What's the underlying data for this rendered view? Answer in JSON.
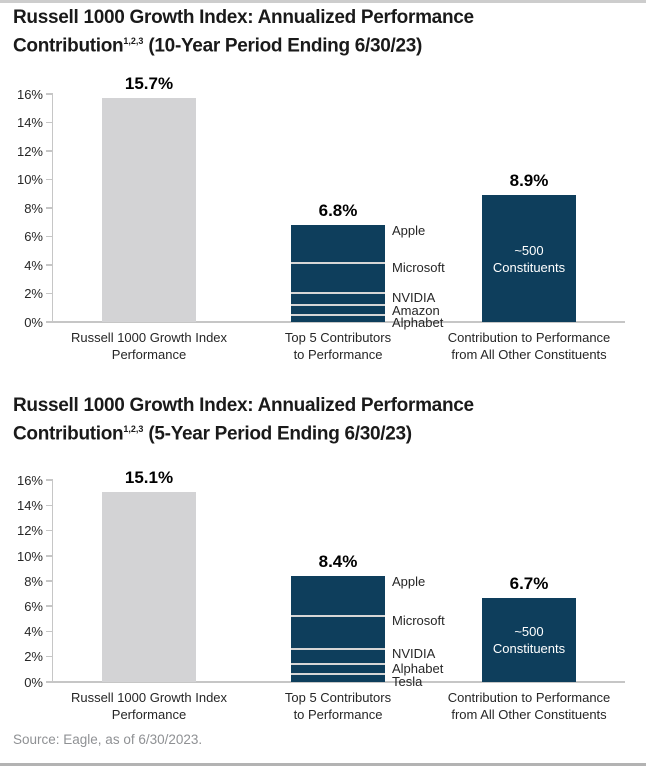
{
  "colors": {
    "navy": "#0e3e5c",
    "bar_gray": "#d3d3d5",
    "segment_divider": "#d6d6d6",
    "axis_line": "#c6c6c6",
    "title_text": "#1a1a1a",
    "body_text": "#262626",
    "value_text": "#000000",
    "bar_inner_text": "#ffffff",
    "source_text": "#8f9194",
    "border_top": "#cdcdcd",
    "border_bottom": "#b3b3b3"
  },
  "source": "Source: Eagle, as of 6/30/2023.",
  "chart_data": [
    {
      "type": "bar",
      "title": {
        "line1": "Russell 1000 Growth Index: Annualized Performance",
        "line2_word": "Contribution",
        "line2_sup": "1,2,3",
        "line2_rest": " (10-Year Period Ending 6/30/23)"
      },
      "ylim": [
        0,
        16
      ],
      "ytick_step": 2,
      "ytick_suffix": "%",
      "grid": false,
      "legend": "none",
      "categories": [
        {
          "label_lines": [
            "Russell 1000 Growth Index",
            "Performance"
          ],
          "bar_style": "plain",
          "value": 15.7,
          "value_label": "15.7%",
          "color_key": "bar_gray"
        },
        {
          "label_lines": [
            "Top 5 Contributors",
            "to Performance"
          ],
          "bar_style": "stacked",
          "value": 6.8,
          "value_label": "6.8%",
          "color_key": "navy",
          "segments": [
            {
              "name": "Apple",
              "value": 2.6
            },
            {
              "name": "Microsoft",
              "value": 2.1
            },
            {
              "name": "NVIDIA",
              "value": 0.85
            },
            {
              "name": "Amazon",
              "value": 0.7
            },
            {
              "name": "Alphabet",
              "value": 0.55
            }
          ]
        },
        {
          "label_lines": [
            "Contribution to Performance",
            "from All Other Constituents"
          ],
          "bar_style": "labeled",
          "value": 8.9,
          "value_label": "8.9%",
          "color_key": "navy",
          "inner_label_lines": [
            "~500",
            "Constituents"
          ]
        }
      ]
    },
    {
      "type": "bar",
      "title": {
        "line1": "Russell 1000 Growth Index: Annualized Performance",
        "line2_word": "Contribution",
        "line2_sup": "1,2,3",
        "line2_rest": " (5-Year Period Ending 6/30/23)"
      },
      "ylim": [
        0,
        16
      ],
      "ytick_step": 2,
      "ytick_suffix": "%",
      "grid": false,
      "legend": "none",
      "categories": [
        {
          "label_lines": [
            "Russell 1000 Growth Index",
            "Performance"
          ],
          "bar_style": "plain",
          "value": 15.1,
          "value_label": "15.1%",
          "color_key": "bar_gray"
        },
        {
          "label_lines": [
            "Top 5 Contributors",
            "to Performance"
          ],
          "bar_style": "stacked",
          "value": 8.4,
          "value_label": "8.4%",
          "color_key": "navy",
          "segments": [
            {
              "name": "Apple",
              "value": 3.1
            },
            {
              "name": "Microsoft",
              "value": 2.6
            },
            {
              "name": "NVIDIA",
              "value": 1.2
            },
            {
              "name": "Alphabet",
              "value": 0.75
            },
            {
              "name": "Tesla",
              "value": 0.75
            }
          ]
        },
        {
          "label_lines": [
            "Contribution to Performance",
            "from All Other Constituents"
          ],
          "bar_style": "labeled",
          "value": 6.7,
          "value_label": "6.7%",
          "color_key": "navy",
          "inner_label_lines": [
            "~500",
            "Constituents"
          ]
        }
      ]
    }
  ]
}
